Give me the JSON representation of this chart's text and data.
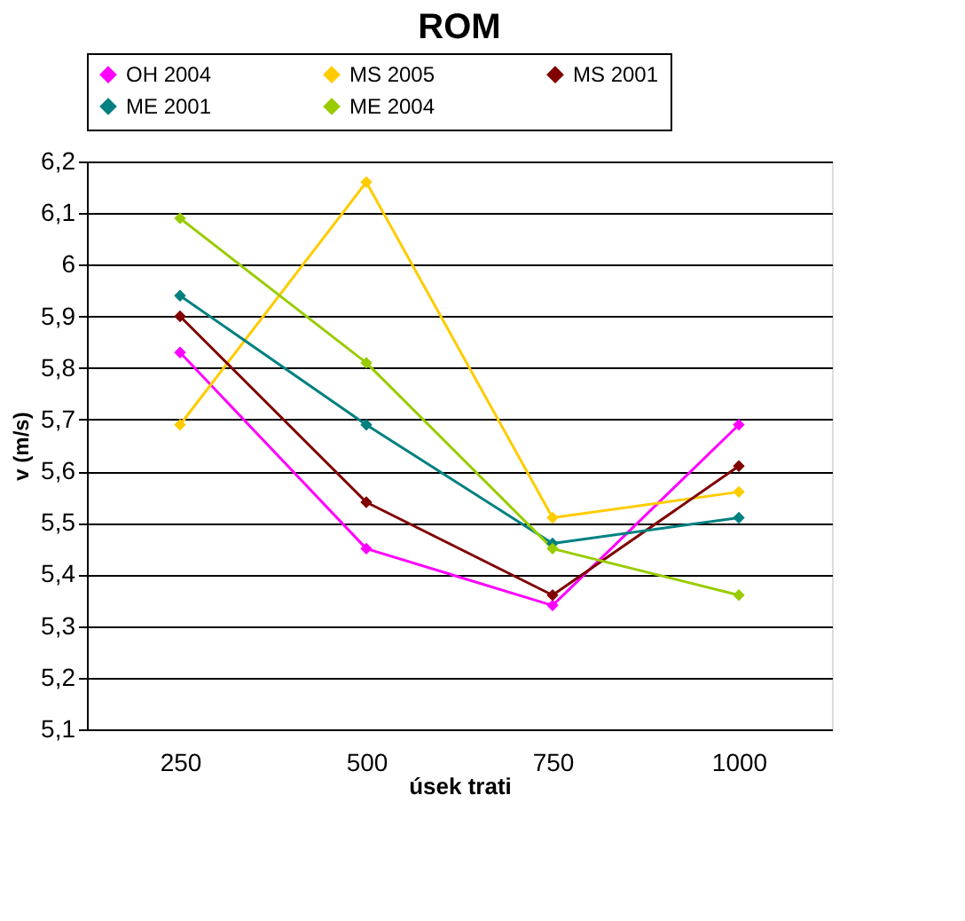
{
  "chart_data": {
    "type": "line",
    "title": "ROM",
    "xlabel": "úsek trati",
    "ylabel": "v (m/s)",
    "categories": [
      "250",
      "500",
      "750",
      "1000"
    ],
    "series": [
      {
        "name": "OH 2004",
        "color": "#ff00ff",
        "values": [
          5.83,
          5.45,
          5.34,
          5.69
        ]
      },
      {
        "name": "MS 2005",
        "color": "#ffcc00",
        "values": [
          5.69,
          6.16,
          5.51,
          5.56
        ]
      },
      {
        "name": "MS 2001",
        "color": "#800000",
        "values": [
          5.9,
          5.54,
          5.36,
          5.61
        ]
      },
      {
        "name": "ME 2001",
        "color": "#008080",
        "values": [
          5.94,
          5.69,
          5.46,
          5.51
        ]
      },
      {
        "name": "ME 2004",
        "color": "#99cc00",
        "values": [
          6.09,
          5.81,
          5.45,
          5.36
        ]
      }
    ],
    "ylim": [
      5.1,
      6.2
    ],
    "yticks": [
      {
        "value": 5.1,
        "label": "5,1"
      },
      {
        "value": 5.2,
        "label": "5,2"
      },
      {
        "value": 5.3,
        "label": "5,3"
      },
      {
        "value": 5.4,
        "label": "5,4"
      },
      {
        "value": 5.5,
        "label": "5,5"
      },
      {
        "value": 5.6,
        "label": "5,6"
      },
      {
        "value": 5.7,
        "label": "5,7"
      },
      {
        "value": 5.8,
        "label": "5,8"
      },
      {
        "value": 5.9,
        "label": "5,9"
      },
      {
        "value": 6,
        "label": "6"
      },
      {
        "value": 6.1,
        "label": "6,1"
      },
      {
        "value": 6.2,
        "label": "6,2"
      }
    ],
    "grid": "y",
    "legend": "top",
    "marker": "diamond",
    "line_style": "solid"
  }
}
